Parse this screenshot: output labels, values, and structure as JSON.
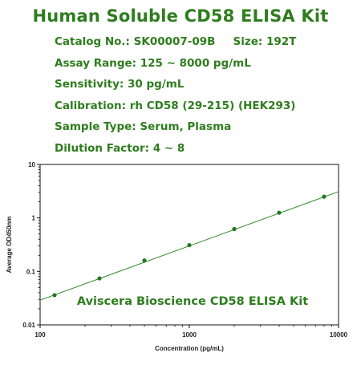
{
  "header": {
    "title": "Human Soluble CD58 ELISA Kit",
    "catalog": "Catalog No.: SK00007-09B",
    "size": "Size: 192T",
    "assay_range": "Assay Range: 125 ~ 8000 pg/mL",
    "sensitivity": "Sensitivity: 30 pg/mL",
    "calibration": "Calibration: rh CD58 (29-215) (HEK293)",
    "sample_type": "Sample Type: Serum, Plasma",
    "dilution": "Dilution Factor: 4 ~ 8"
  },
  "colors": {
    "accent": "#2e7d1e",
    "line": "#2f8a2a",
    "marker": "#1f7a1f"
  },
  "chart_data": {
    "type": "scatter",
    "title": "",
    "xlabel": "Concentration (pg/mL)",
    "ylabel": "Average OD450nm",
    "xscale": "log",
    "yscale": "log",
    "xlim": [
      100,
      10000
    ],
    "ylim": [
      0.01,
      10
    ],
    "x_ticks": [
      "100",
      "1000",
      "10000"
    ],
    "y_ticks": [
      "0.01",
      "0.1",
      "1",
      "10"
    ],
    "grid": false,
    "annotation": "Aviscera Bioscience CD58 ELISA Kit",
    "series": [
      {
        "x": [
          125,
          250,
          500,
          1000,
          2000,
          4000,
          8000
        ],
        "y": [
          0.036,
          0.074,
          0.16,
          0.31,
          0.62,
          1.25,
          2.5
        ]
      }
    ],
    "fit_line": {
      "x": [
        100,
        10000
      ],
      "y": [
        0.029,
        3.1
      ]
    }
  }
}
